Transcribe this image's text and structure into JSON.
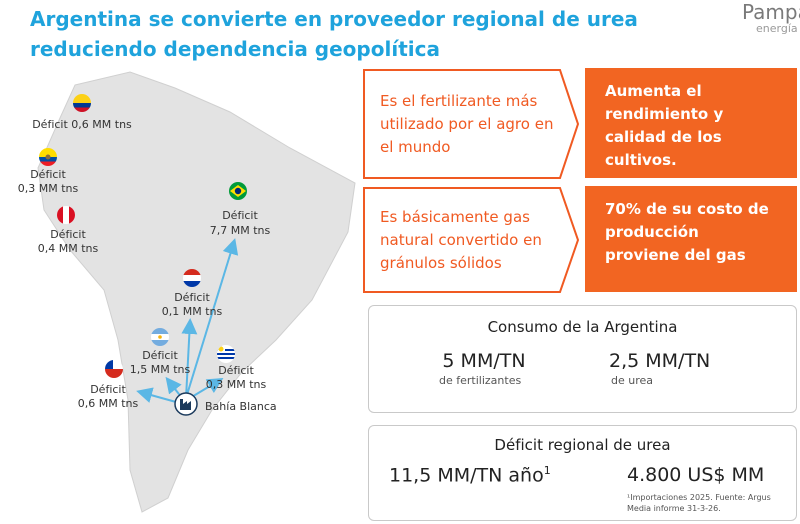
{
  "header": {
    "title": "Argentina se convierte en proveedor regional de urea reduciendo dependencia geopolítica",
    "logo": "Pampa",
    "logo_sub": "energía"
  },
  "map": {
    "colombia": [
      "Déficit 0,6 MM tns"
    ],
    "ecuador": [
      "Déficit",
      "0,3 MM tns"
    ],
    "peru": [
      "Déficit",
      "0,4 MM tns"
    ],
    "brasil": [
      "Déficit",
      "7,7 MM tns"
    ],
    "paraguay": [
      "Déficit",
      "0,1 MM tns"
    ],
    "argentina": [
      "Déficit",
      "1,5 MM tns"
    ],
    "uruguay": [
      "Déficit",
      "0,3 MM tns"
    ],
    "chile": [
      "Déficit",
      "0,6 MM tns"
    ],
    "origin": "Bahía Blanca"
  },
  "facts": [
    {
      "text": "Es el fertilizante más utilizado por el agro en el mundo",
      "result": "Aumenta el rendimiento y calidad de los cultivos."
    },
    {
      "text": "Es básicamente gas natural convertido en gránulos sólidos",
      "result": "70% de su costo de producción proviene del gas"
    }
  ],
  "consumo": {
    "title": "Consumo de la Argentina",
    "items": [
      {
        "value": "5 MM/TN",
        "label": "de fertilizantes"
      },
      {
        "value": "2,5 MM/TN",
        "label": "de urea"
      }
    ]
  },
  "deficit": {
    "title": "Déficit regional de urea",
    "items": [
      {
        "value": "11,5 MM/TN año",
        "sup": "1"
      },
      {
        "value": "4.800 US$ MM"
      }
    ],
    "note": "¹Importaciones 2025. Fuente: Argus Media informe 31-3-26."
  }
}
